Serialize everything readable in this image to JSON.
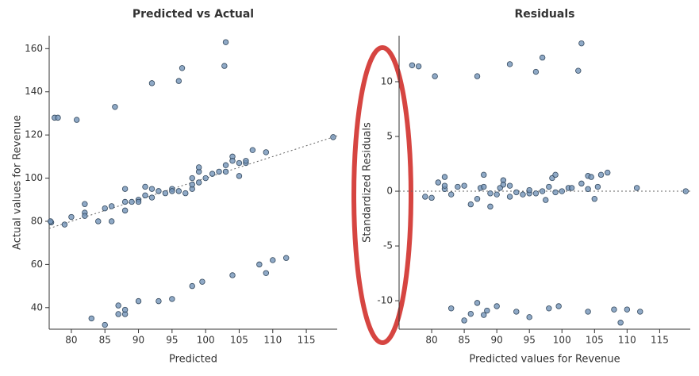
{
  "chart_data": [
    {
      "type": "scatter",
      "title": "Predicted vs Actual",
      "x_label": "Predicted",
      "y_label": "Actual values for Revenue",
      "xlim": [
        76.7,
        119.6
      ],
      "ylim": [
        30,
        166
      ],
      "xticks": [
        80,
        85,
        90,
        95,
        100,
        105,
        110,
        115
      ],
      "yticks": [
        40,
        60,
        80,
        100,
        120,
        140,
        160
      ],
      "color": "#7393b8",
      "x": [
        77.5,
        78,
        80.8,
        86.5,
        92,
        96,
        96.5,
        102.8,
        103,
        79,
        77,
        76.9,
        84,
        82,
        82,
        82,
        80,
        85,
        86,
        86,
        88,
        88,
        88,
        89,
        90,
        90,
        91,
        91,
        92,
        92,
        93,
        94,
        95,
        95,
        96,
        97,
        98,
        98,
        98,
        99,
        99,
        99,
        100,
        101,
        102,
        103,
        103,
        104,
        104,
        105,
        105,
        106,
        106,
        107,
        109,
        119,
        83,
        85,
        87,
        87,
        88,
        88,
        90,
        93,
        95,
        98,
        99.5,
        104,
        108,
        109,
        110,
        112
      ],
      "y": [
        128,
        128,
        127,
        133,
        144,
        145,
        151,
        152,
        163,
        78.5,
        79.5,
        80,
        80,
        84,
        82.5,
        88,
        82,
        86,
        87,
        80,
        89,
        95,
        85,
        89,
        90,
        89,
        92,
        96,
        95,
        91,
        94,
        93,
        95,
        94,
        94,
        93,
        95,
        97,
        100,
        98,
        103,
        105,
        100,
        102,
        103,
        103,
        106,
        110,
        108,
        107,
        101,
        107,
        108,
        113,
        112,
        119,
        35,
        32,
        37,
        41,
        37,
        39,
        43,
        43,
        44,
        50,
        52,
        55,
        60,
        56,
        62,
        63
      ],
      "reference_line": {
        "x": [
          76.7,
          119.6
        ],
        "y": [
          76.7,
          119.6
        ]
      }
    },
    {
      "type": "scatter",
      "title": "Residuals",
      "x_label": "Predicted values for Revenue",
      "y_label": "Standardized Residuals",
      "xlim": [
        75,
        119.7
      ],
      "ylim": [
        -12.6,
        14.2
      ],
      "xticks": [
        80,
        85,
        90,
        95,
        100,
        105,
        110,
        115
      ],
      "yticks": [
        -10,
        -5,
        0,
        5,
        10
      ],
      "color": "#7393b8",
      "x": [
        77,
        78,
        80.5,
        87,
        92,
        96,
        97,
        102.5,
        103,
        83,
        85,
        86,
        87,
        88,
        88.5,
        90,
        93,
        95,
        98,
        99.5,
        104,
        108,
        109,
        110,
        112,
        79,
        80,
        81,
        82,
        82,
        82,
        83,
        84,
        85,
        86,
        87,
        87.5,
        88,
        88,
        89,
        89,
        90,
        90.5,
        91,
        91,
        92,
        92,
        93,
        94,
        95,
        95,
        96,
        97,
        97.5,
        98,
        98.5,
        99,
        99,
        100,
        101,
        101.5,
        103,
        104,
        104,
        104.5,
        105,
        105.5,
        106,
        107,
        111.5,
        119
      ],
      "y": [
        11.5,
        11.4,
        10.5,
        10.5,
        11.6,
        10.9,
        12.2,
        11,
        13.5,
        -10.7,
        -11.8,
        -11.2,
        -10.2,
        -11.3,
        -10.9,
        -10.5,
        -11,
        -11.5,
        -10.7,
        -10.5,
        -11,
        -10.8,
        -12,
        -10.8,
        -11,
        -0.5,
        -0.6,
        0.8,
        1.3,
        0.2,
        0.5,
        -0.3,
        0.4,
        0.5,
        -1.2,
        -0.7,
        0.3,
        1.5,
        0.4,
        -0.2,
        -1.4,
        -0.3,
        0.3,
        1,
        0.6,
        0.5,
        -0.5,
        -0.1,
        -0.3,
        -0.2,
        0.1,
        -0.2,
        0,
        -0.8,
        0.4,
        1.2,
        1.5,
        -0.1,
        0,
        0.3,
        0.3,
        0.7,
        1.4,
        0.2,
        1.3,
        -0.7,
        0.4,
        1.5,
        1.7,
        0.3,
        0
      ],
      "reference_line": {
        "x": [
          75,
          119.7
        ],
        "y": [
          0,
          0
        ]
      }
    }
  ]
}
